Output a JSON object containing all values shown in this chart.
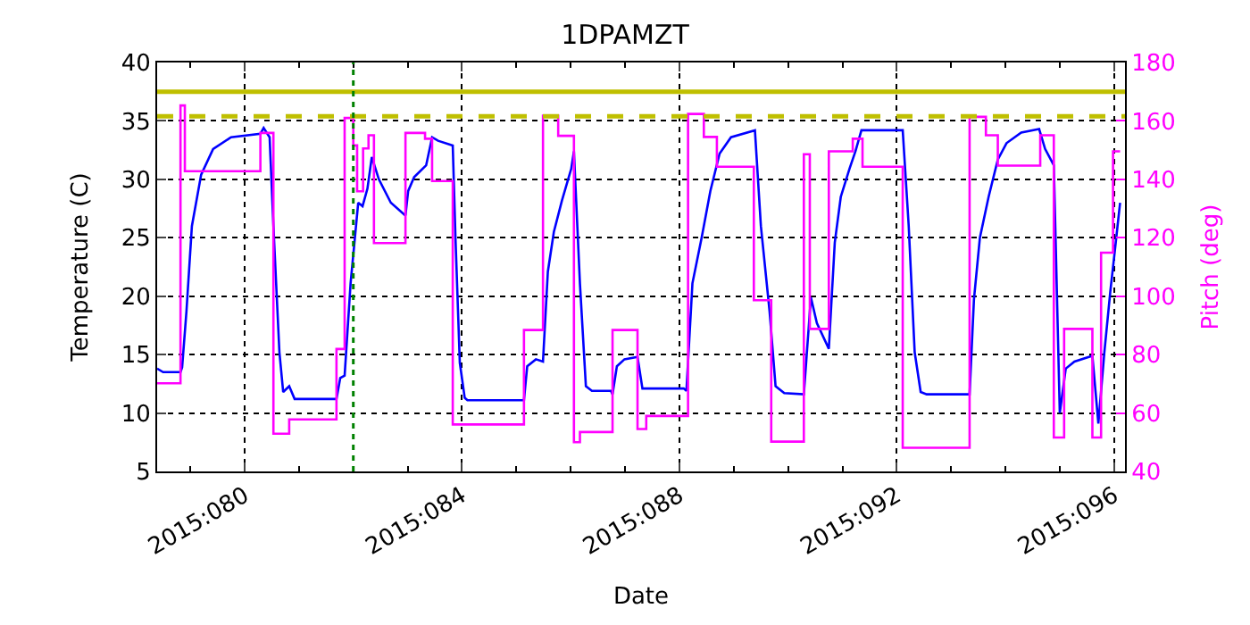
{
  "chart_data": {
    "type": "line",
    "title": "1DPAMZT",
    "xlabel": "Date",
    "ylabel": "Temperature (C)",
    "y2label": "Pitch (deg)",
    "xlim": [
      "2015-03-19T09:22",
      "2015-04-06T04:48"
    ],
    "xticks": [
      {
        "value": "2015-03-20",
        "label": null
      },
      {
        "value": "2015-03-21",
        "label": "2015:080"
      },
      {
        "value": "2015-03-22",
        "label": null
      },
      {
        "value": "2015-03-23",
        "label": null
      },
      {
        "value": "2015-03-24",
        "label": null
      },
      {
        "value": "2015-03-25",
        "label": "2015:084"
      },
      {
        "value": "2015-03-26",
        "label": null
      },
      {
        "value": "2015-03-27",
        "label": null
      },
      {
        "value": "2015-03-28",
        "label": null
      },
      {
        "value": "2015-03-29",
        "label": "2015:088"
      },
      {
        "value": "2015-03-30",
        "label": null
      },
      {
        "value": "2015-03-31",
        "label": null
      },
      {
        "value": "2015-04-01",
        "label": null
      },
      {
        "value": "2015-04-02",
        "label": "2015:092"
      },
      {
        "value": "2015-04-03",
        "label": null
      },
      {
        "value": "2015-04-04",
        "label": null
      },
      {
        "value": "2015-04-05",
        "label": null
      },
      {
        "value": "2015-04-06",
        "label": "2015:096"
      }
    ],
    "ylim": [
      5,
      40
    ],
    "yticks": [
      5,
      10,
      15,
      20,
      25,
      30,
      35,
      40
    ],
    "y2lim": [
      40,
      180
    ],
    "y2ticks": [
      40,
      60,
      80,
      100,
      120,
      140,
      160,
      180
    ],
    "grid": true,
    "marker": "none",
    "series": [
      {
        "color": "#0000ff",
        "line_style": "solid",
        "x": [
          "2015-03-19T09:22",
          "2015-03-19T12:00",
          "2015-03-19T19:41",
          "2015-03-19T20:24",
          "2015-03-19T22:19",
          "2015-03-20T00:43",
          "2015-03-20T04:48",
          "2015-03-20T10:05",
          "2015-03-20T18:00",
          "2015-03-21T06:58",
          "2015-03-21T08:24",
          "2015-03-21T11:02",
          "2015-03-21T12:43",
          "2015-03-21T15:22",
          "2015-03-21T17:02",
          "2015-03-21T19:41",
          "2015-03-21T22:05",
          "2015-03-22T16:34",
          "2015-03-22T18:14",
          "2015-03-22T20:10",
          "2015-03-22T22:48",
          "2015-03-23T02:10",
          "2015-03-23T04:05",
          "2015-03-23T06:14",
          "2015-03-23T08:10",
          "2015-03-23T11:17",
          "2015-03-23T16:34",
          "2015-03-23T23:02",
          "2015-03-24T00:14",
          "2015-03-24T02:53",
          "2015-03-24T08:10",
          "2015-03-24T10:48",
          "2015-03-24T13:26",
          "2015-03-24T19:55",
          "2015-03-24T21:07",
          "2015-03-24T23:02",
          "2015-03-25T01:12",
          "2015-03-25T02:24",
          "2015-03-26T03:22",
          "2015-03-26T04:48",
          "2015-03-26T08:38",
          "2015-03-26T11:46",
          "2015-03-26T13:55",
          "2015-03-26T16:34",
          "2015-03-26T20:10",
          "2015-03-27T00:14",
          "2015-03-27T01:26",
          "2015-03-27T04:05",
          "2015-03-27T06:43",
          "2015-03-27T09:22",
          "2015-03-27T17:46",
          "2015-03-27T18:29",
          "2015-03-27T20:24",
          "2015-03-27T23:46",
          "2015-03-28T05:31",
          "2015-03-28T07:41",
          "2015-03-29T01:55",
          "2015-03-29T03:07",
          "2015-03-29T05:46",
          "2015-03-29T09:50",
          "2015-03-29T13:41",
          "2015-03-29T17:46",
          "2015-03-29T22:48",
          "2015-03-30T09:22",
          "2015-03-30T12:00",
          "2015-03-30T15:50",
          "2015-03-30T18:29",
          "2015-03-30T22:19",
          "2015-03-31T06:58",
          "2015-03-31T10:05",
          "2015-03-31T12:43",
          "2015-03-31T18:00",
          "2015-03-31T20:38",
          "2015-03-31T23:17",
          "2015-04-01T03:07",
          "2015-04-01T05:46",
          "2015-04-01T08:24",
          "2015-04-02T02:38",
          "2015-04-02T05:17",
          "2015-04-02T07:55",
          "2015-04-02T10:34",
          "2015-04-02T13:12",
          "2015-04-03T08:10",
          "2015-04-03T10:05",
          "2015-04-03T12:43",
          "2015-04-03T16:34",
          "2015-04-03T20:38",
          "2015-04-04T00:29",
          "2015-04-04T06:58",
          "2015-04-04T14:53",
          "2015-04-04T17:31",
          "2015-04-04T21:22",
          "2015-04-05T00:00",
          "2015-04-05T02:38",
          "2015-04-05T06:29",
          "2015-04-05T14:24",
          "2015-04-05T17:02",
          "2015-04-05T19:41",
          "2015-04-05T22:19",
          "2015-04-06T00:43",
          "2015-04-06T02:38"
        ],
        "values": [
          13.8,
          13.5,
          13.5,
          13.9,
          18.7,
          26.0,
          30.4,
          32.6,
          33.6,
          33.9,
          34.4,
          33.6,
          26.0,
          15.2,
          11.8,
          12.3,
          11.2,
          11.2,
          13.0,
          13.2,
          21.1,
          28.0,
          27.7,
          29.2,
          31.9,
          30.0,
          28.0,
          26.9,
          29.0,
          30.2,
          31.2,
          33.6,
          33.3,
          32.9,
          25.0,
          14.3,
          11.3,
          11.1,
          11.1,
          14.0,
          14.6,
          14.4,
          22.1,
          25.5,
          28.2,
          30.9,
          32.4,
          21.1,
          12.3,
          11.9,
          11.9,
          11.6,
          14.0,
          14.6,
          14.8,
          12.1,
          12.1,
          11.9,
          21.1,
          25.0,
          29.0,
          32.2,
          33.6,
          34.2,
          26.0,
          18.7,
          12.3,
          11.7,
          11.6,
          19.9,
          17.7,
          15.5,
          24.6,
          28.5,
          30.9,
          32.4,
          34.2,
          34.2,
          26.0,
          15.2,
          11.8,
          11.6,
          11.6,
          19.7,
          25.0,
          28.5,
          31.7,
          33.1,
          34.0,
          34.3,
          32.6,
          31.2,
          10.0,
          13.8,
          14.4,
          14.9,
          9.1,
          15.2,
          20.4,
          24.6,
          28.0
        ]
      },
      {
        "type": "step",
        "axis": "y2",
        "color": "#ff00ff",
        "line_style": "solid",
        "x": [
          "2015-03-19T09:22",
          "2015-03-19T19:41",
          "2015-03-19T21:36",
          "2015-03-21T06:58",
          "2015-03-21T12:43",
          "2015-03-21T19:41",
          "2015-03-22T16:34",
          "2015-03-22T20:10",
          "2015-03-23T00:00",
          "2015-03-23T01:41",
          "2015-03-23T04:19",
          "2015-03-23T06:43",
          "2015-03-23T09:07",
          "2015-03-23T23:02",
          "2015-03-24T07:41",
          "2015-03-24T10:48",
          "2015-03-24T19:55",
          "2015-03-26T03:22",
          "2015-03-26T11:46",
          "2015-03-26T18:29",
          "2015-03-27T01:26",
          "2015-03-27T04:05",
          "2015-03-27T18:29",
          "2015-03-28T05:31",
          "2015-03-28T09:22",
          "2015-03-29T03:50",
          "2015-03-29T10:48",
          "2015-03-29T16:34",
          "2015-03-30T08:53",
          "2015-03-30T16:34",
          "2015-03-31T06:58",
          "2015-03-31T09:36",
          "2015-03-31T18:00",
          "2015-04-01T04:34",
          "2015-04-01T08:53",
          "2015-04-02T02:38",
          "2015-04-03T08:10",
          "2015-04-03T15:22",
          "2015-04-03T20:38",
          "2015-04-04T15:22",
          "2015-04-04T21:22",
          "2015-04-05T01:55",
          "2015-04-05T14:24",
          "2015-04-05T18:14",
          "2015-04-05T23:31",
          "2015-04-06T02:38"
        ],
        "values": [
          70.2,
          165.3,
          142.8,
          155.9,
          52.9,
          57.8,
          81.9,
          161.0,
          151.6,
          135.9,
          150.6,
          155.1,
          118.2,
          155.9,
          153.9,
          139.4,
          56.1,
          88.4,
          161.8,
          154.9,
          50.0,
          53.5,
          88.4,
          54.5,
          59.0,
          162.4,
          154.5,
          144.3,
          98.6,
          50.2,
          148.6,
          88.8,
          149.6,
          153.9,
          144.3,
          48.1,
          161.4,
          155.1,
          144.7,
          155.1,
          51.6,
          88.8,
          51.6,
          114.9,
          149.6,
          149.6
        ]
      }
    ],
    "ref_lines": [
      {
        "axis": "y",
        "value": 37.5,
        "color": "#bfbf00",
        "line_style": "solid"
      },
      {
        "axis": "y",
        "value": 35.4,
        "color": "#bfbf00",
        "line_style": "dashed"
      },
      {
        "axis": "x",
        "value": "2015-03-23T00:00",
        "color": "#008000",
        "line_style": "dotted"
      }
    ]
  }
}
